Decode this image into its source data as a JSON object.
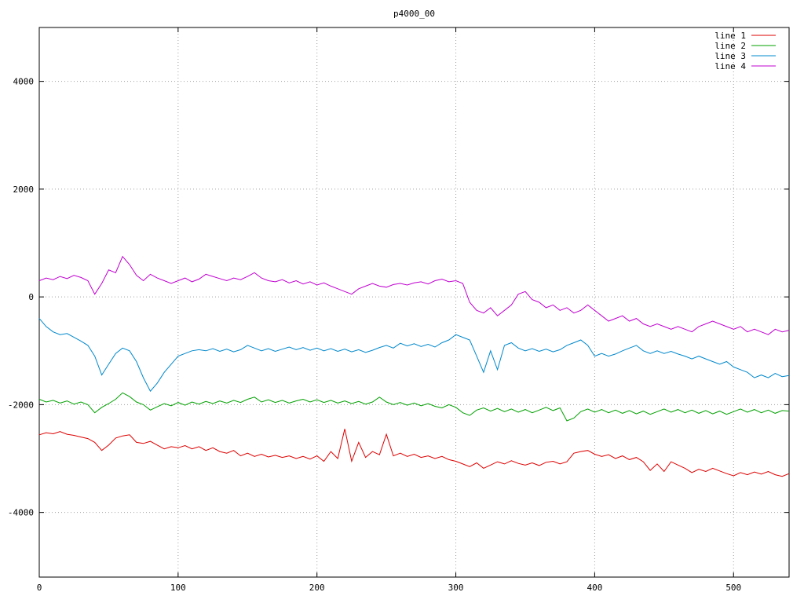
{
  "chart_data": {
    "type": "line",
    "title": "p4000_00",
    "xlabel": "",
    "ylabel": "",
    "xlim": [
      0,
      540
    ],
    "ylim": [
      -5200,
      5000
    ],
    "xticks": [
      0,
      100,
      200,
      300,
      400,
      500
    ],
    "yticks": [
      -4000,
      -2000,
      0,
      2000,
      4000
    ],
    "grid": true,
    "legend_position": "top-right",
    "x": [
      0,
      5,
      10,
      15,
      20,
      25,
      30,
      35,
      40,
      45,
      50,
      55,
      60,
      65,
      70,
      75,
      80,
      85,
      90,
      95,
      100,
      105,
      110,
      115,
      120,
      125,
      130,
      135,
      140,
      145,
      150,
      155,
      160,
      165,
      170,
      175,
      180,
      185,
      190,
      195,
      200,
      205,
      210,
      215,
      220,
      225,
      230,
      235,
      240,
      245,
      250,
      255,
      260,
      265,
      270,
      275,
      280,
      285,
      290,
      295,
      300,
      305,
      310,
      315,
      320,
      325,
      330,
      335,
      340,
      345,
      350,
      355,
      360,
      365,
      370,
      375,
      380,
      385,
      390,
      395,
      400,
      405,
      410,
      415,
      420,
      425,
      430,
      435,
      440,
      445,
      450,
      455,
      460,
      465,
      470,
      475,
      480,
      485,
      490,
      495,
      500,
      505,
      510,
      515,
      520,
      525,
      530,
      535,
      540
    ],
    "series": [
      {
        "name": "line 1",
        "color": "#dd0000",
        "values": [
          -2560,
          -2520,
          -2540,
          -2500,
          -2550,
          -2570,
          -2600,
          -2630,
          -2700,
          -2850,
          -2750,
          -2620,
          -2580,
          -2560,
          -2700,
          -2720,
          -2680,
          -2750,
          -2820,
          -2780,
          -2800,
          -2760,
          -2820,
          -2780,
          -2850,
          -2800,
          -2870,
          -2900,
          -2850,
          -2950,
          -2900,
          -2960,
          -2920,
          -2970,
          -2940,
          -2980,
          -2950,
          -3000,
          -2960,
          -3010,
          -2950,
          -3050,
          -2870,
          -3000,
          -2450,
          -3050,
          -2700,
          -2980,
          -2870,
          -2930,
          -2550,
          -2950,
          -2900,
          -2960,
          -2920,
          -2980,
          -2950,
          -3000,
          -2960,
          -3020,
          -3050,
          -3100,
          -3150,
          -3080,
          -3180,
          -3120,
          -3060,
          -3100,
          -3040,
          -3090,
          -3120,
          -3080,
          -3130,
          -3070,
          -3050,
          -3100,
          -3060,
          -2900,
          -2870,
          -2850,
          -2920,
          -2960,
          -2930,
          -3000,
          -2950,
          -3020,
          -2980,
          -3060,
          -3220,
          -3100,
          -3240,
          -3060,
          -3120,
          -3180,
          -3260,
          -3200,
          -3240,
          -3180,
          -3230,
          -3280,
          -3320,
          -3260,
          -3300,
          -3250,
          -3290,
          -3240,
          -3300,
          -3330,
          -3280
        ]
      },
      {
        "name": "line 2",
        "color": "#00a000",
        "values": [
          -1900,
          -1950,
          -1920,
          -1970,
          -1930,
          -1990,
          -1950,
          -2000,
          -2150,
          -2050,
          -1980,
          -1900,
          -1780,
          -1850,
          -1950,
          -2000,
          -2100,
          -2040,
          -1980,
          -2020,
          -1960,
          -2010,
          -1950,
          -1990,
          -1940,
          -1980,
          -1930,
          -1970,
          -1920,
          -1960,
          -1900,
          -1860,
          -1950,
          -1910,
          -1960,
          -1920,
          -1970,
          -1930,
          -1900,
          -1950,
          -1910,
          -1960,
          -1920,
          -1970,
          -1930,
          -1980,
          -1940,
          -1990,
          -1950,
          -1860,
          -1950,
          -2000,
          -1960,
          -2010,
          -1970,
          -2020,
          -1980,
          -2030,
          -2060,
          -2000,
          -2050,
          -2150,
          -2200,
          -2100,
          -2060,
          -2120,
          -2070,
          -2130,
          -2080,
          -2140,
          -2090,
          -2150,
          -2100,
          -2050,
          -2110,
          -2060,
          -2300,
          -2250,
          -2130,
          -2080,
          -2140,
          -2090,
          -2150,
          -2100,
          -2160,
          -2110,
          -2170,
          -2120,
          -2180,
          -2130,
          -2080,
          -2140,
          -2090,
          -2150,
          -2100,
          -2160,
          -2110,
          -2170,
          -2120,
          -2180,
          -2130,
          -2080,
          -2140,
          -2090,
          -2150,
          -2100,
          -2160,
          -2110,
          -2120
        ]
      },
      {
        "name": "line 3",
        "color": "#0088cc",
        "values": [
          -400,
          -550,
          -650,
          -700,
          -680,
          -750,
          -820,
          -900,
          -1100,
          -1450,
          -1250,
          -1050,
          -950,
          -1000,
          -1200,
          -1500,
          -1750,
          -1600,
          -1400,
          -1250,
          -1100,
          -1050,
          -1000,
          -980,
          -1000,
          -960,
          -1010,
          -970,
          -1020,
          -980,
          -900,
          -950,
          -1000,
          -960,
          -1010,
          -970,
          -930,
          -980,
          -940,
          -990,
          -950,
          -1000,
          -960,
          -1010,
          -970,
          -1020,
          -980,
          -1030,
          -990,
          -940,
          -900,
          -950,
          -860,
          -910,
          -870,
          -920,
          -880,
          -930,
          -850,
          -800,
          -700,
          -750,
          -800,
          -1100,
          -1400,
          -1000,
          -1350,
          -900,
          -850,
          -950,
          -1000,
          -960,
          -1010,
          -970,
          -1020,
          -980,
          -900,
          -850,
          -800,
          -900,
          -1100,
          -1050,
          -1100,
          -1060,
          -1000,
          -950,
          -900,
          -1000,
          -1050,
          -1000,
          -1050,
          -1010,
          -1060,
          -1100,
          -1150,
          -1100,
          -1150,
          -1200,
          -1250,
          -1200,
          -1300,
          -1350,
          -1400,
          -1500,
          -1450,
          -1500,
          -1420,
          -1480,
          -1460
        ]
      },
      {
        "name": "line 4",
        "color": "#c000d0",
        "values": [
          300,
          350,
          320,
          380,
          340,
          400,
          360,
          300,
          50,
          250,
          500,
          450,
          750,
          600,
          400,
          300,
          420,
          350,
          300,
          250,
          300,
          350,
          280,
          330,
          420,
          380,
          340,
          300,
          350,
          320,
          380,
          450,
          350,
          300,
          280,
          320,
          260,
          300,
          240,
          280,
          220,
          260,
          200,
          150,
          100,
          50,
          150,
          200,
          250,
          200,
          180,
          230,
          250,
          220,
          260,
          280,
          240,
          300,
          330,
          280,
          300,
          250,
          -100,
          -250,
          -300,
          -200,
          -350,
          -250,
          -150,
          50,
          100,
          -50,
          -100,
          -200,
          -150,
          -250,
          -200,
          -300,
          -250,
          -150,
          -250,
          -350,
          -450,
          -400,
          -350,
          -450,
          -400,
          -500,
          -550,
          -500,
          -550,
          -600,
          -550,
          -600,
          -650,
          -550,
          -500,
          -450,
          -500,
          -550,
          -600,
          -550,
          -650,
          -600,
          -650,
          -700,
          -600,
          -650,
          -620
        ]
      }
    ]
  },
  "colors": {
    "background": "#ffffff",
    "grid": "#a0a0a0",
    "border": "#000000",
    "text": "#000000"
  }
}
